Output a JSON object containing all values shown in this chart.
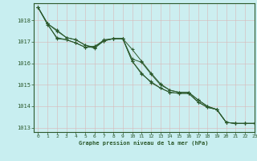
{
  "title": "Graphe pression niveau de la mer (hPa)",
  "background_color": "#c8eef0",
  "plot_background": "#cceef0",
  "grid_color": "#e8e8e8",
  "line_color": "#2d5a2d",
  "xlim": [
    -0.5,
    23
  ],
  "ylim": [
    1012.8,
    1018.8
  ],
  "yticks": [
    1013,
    1014,
    1015,
    1016,
    1017,
    1018
  ],
  "xticks": [
    0,
    1,
    2,
    3,
    4,
    5,
    6,
    7,
    8,
    9,
    10,
    11,
    12,
    13,
    14,
    15,
    16,
    17,
    18,
    19,
    20,
    21,
    22,
    23
  ],
  "series": [
    [
      1018.6,
      1017.85,
      1017.55,
      1017.2,
      1017.1,
      1016.85,
      1016.75,
      1017.1,
      1017.15,
      1017.15,
      1016.2,
      1016.05,
      1015.5,
      1015.0,
      1014.75,
      1014.65,
      1014.65,
      1014.3,
      1014.0,
      1013.85,
      1013.25,
      1013.2,
      1013.2,
      1013.2
    ],
    [
      1018.6,
      1017.85,
      1017.5,
      1017.2,
      1017.1,
      1016.85,
      1016.7,
      1017.05,
      1017.15,
      1017.15,
      1016.65,
      1016.1,
      1015.55,
      1015.05,
      1014.75,
      1014.65,
      1014.65,
      1014.3,
      1014.0,
      1013.85,
      1013.25,
      1013.2,
      1013.2,
      1013.2
    ],
    [
      1018.6,
      1017.85,
      1017.15,
      1017.1,
      1016.95,
      1016.75,
      1016.75,
      1017.05,
      1017.15,
      1017.15,
      1016.1,
      1015.5,
      1015.15,
      1014.85,
      1014.65,
      1014.6,
      1014.6,
      1014.2,
      1013.95,
      1013.85,
      1013.25,
      1013.2,
      1013.2,
      1013.2
    ],
    [
      1018.6,
      1017.8,
      1017.2,
      1017.1,
      1016.95,
      1016.75,
      1016.8,
      1017.05,
      1017.15,
      1017.15,
      1016.1,
      1015.55,
      1015.1,
      1014.85,
      1014.65,
      1014.6,
      1014.6,
      1014.2,
      1013.95,
      1013.85,
      1013.25,
      1013.2,
      1013.2,
      1013.2
    ]
  ]
}
